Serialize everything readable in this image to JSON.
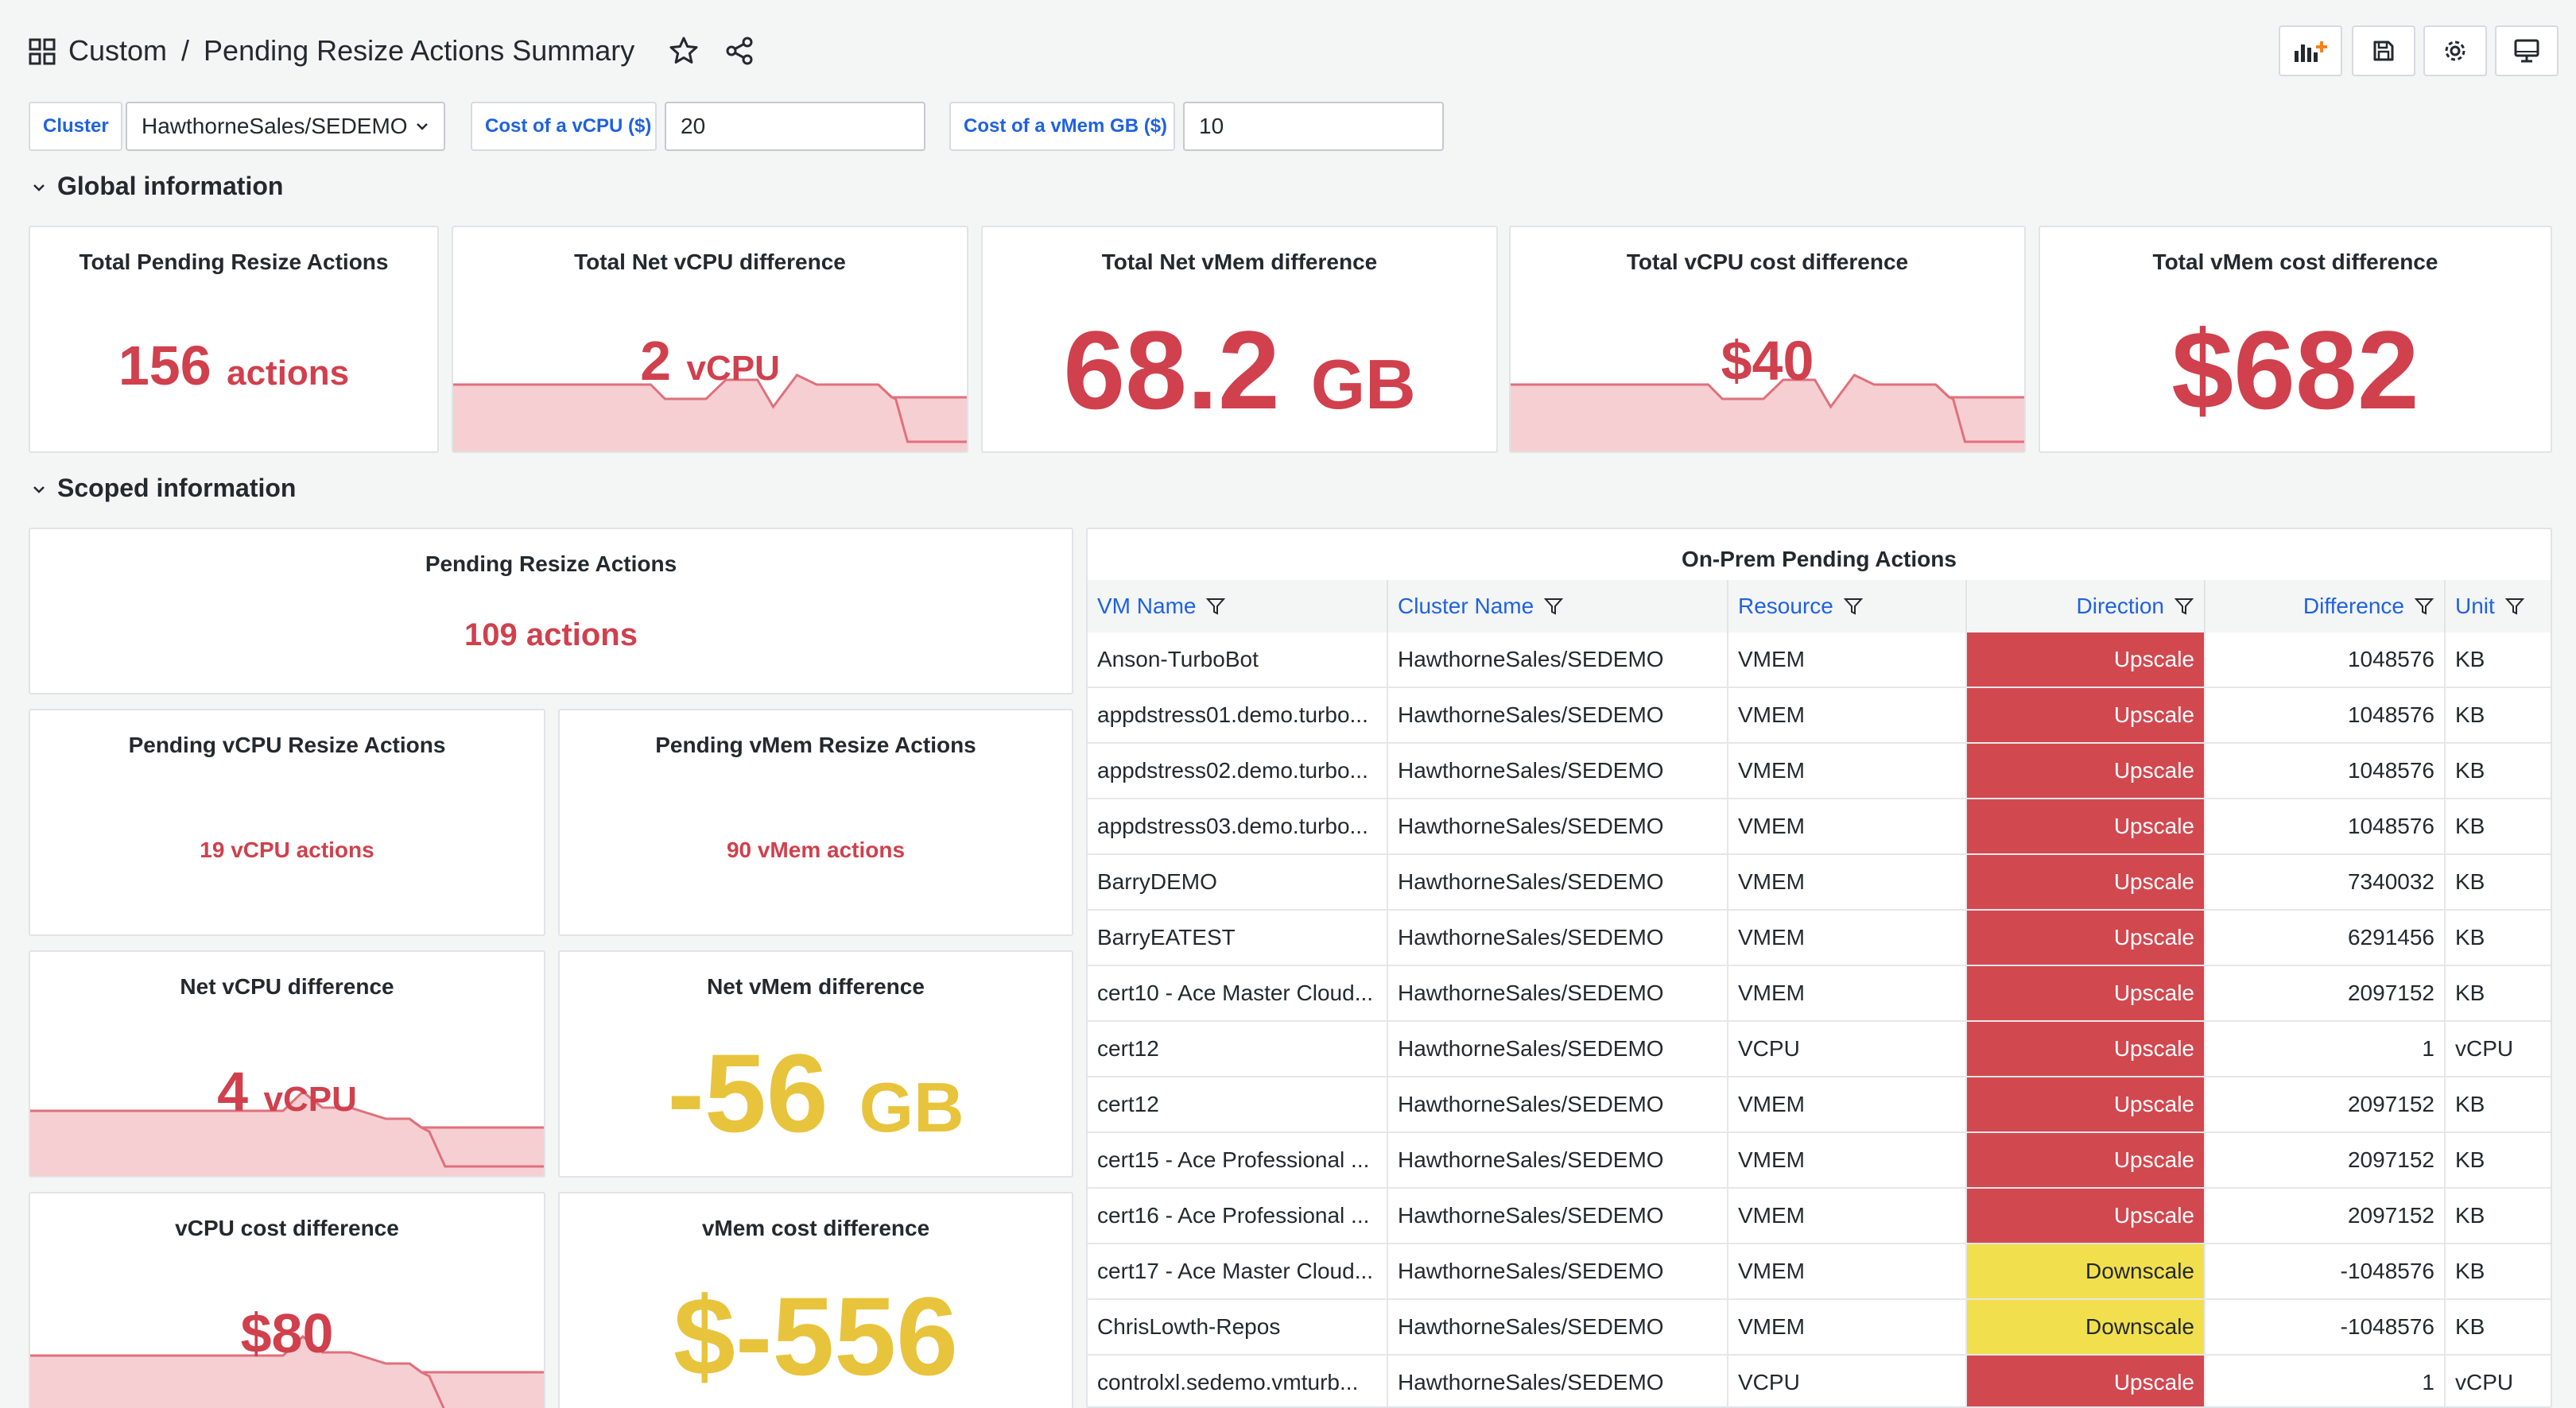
{
  "header": {
    "breadcrumb_parent": "Custom",
    "breadcrumb_sep": "/",
    "title": "Pending Resize Actions Summary",
    "toolbar_icons": [
      "add-panel-icon",
      "save-icon",
      "gear-icon",
      "monitor-icon"
    ]
  },
  "variables": {
    "cluster_label": "Cluster",
    "cluster_value": "HawthorneSales/SEDEMO",
    "vcpu_cost_label": "Cost of a vCPU ($)",
    "vcpu_cost_value": "20",
    "vmem_cost_label": "Cost of a vMem GB ($)",
    "vmem_cost_value": "10"
  },
  "global": {
    "row_title": "Global information",
    "panels": {
      "total_actions": {
        "title": "Total Pending Resize Actions",
        "value": "156",
        "unit": "actions"
      },
      "net_vcpu": {
        "title": "Total Net vCPU difference",
        "value": "2",
        "unit": "vCPU"
      },
      "net_vmem": {
        "title": "Total Net vMem difference",
        "value": "68.2",
        "unit": "GB"
      },
      "vcpu_cost": {
        "title": "Total vCPU cost difference",
        "value": "$40"
      },
      "vmem_cost": {
        "title": "Total vMem cost difference",
        "value": "$682"
      }
    }
  },
  "scoped": {
    "row_title": "Scoped information",
    "panels": {
      "pending_actions": {
        "title": "Pending Resize Actions",
        "value": "109 actions"
      },
      "vcpu_actions": {
        "title": "Pending vCPU Resize Actions",
        "value": "19 vCPU actions"
      },
      "vmem_actions": {
        "title": "Pending vMem Resize Actions",
        "value": "90 vMem actions"
      },
      "net_vcpu": {
        "title": "Net vCPU difference",
        "value": "4",
        "unit": "vCPU"
      },
      "net_vmem": {
        "title": "Net vMem difference",
        "value": "-56",
        "unit": "GB"
      },
      "vcpu_cost": {
        "title": "vCPU cost difference",
        "value": "$80"
      },
      "vmem_cost": {
        "title": "vMem cost difference",
        "value": "$-556"
      }
    }
  },
  "table": {
    "title": "On-Prem Pending Actions",
    "columns": [
      "VM Name",
      "Cluster Name",
      "Resource",
      "Direction",
      "Difference",
      "Unit"
    ],
    "rows": [
      {
        "vm": "Anson-TurboBot",
        "cluster": "HawthorneSales/SEDEMO",
        "resource": "VMEM",
        "direction": "Upscale",
        "difference": "1048576",
        "unit": "KB"
      },
      {
        "vm": "appdstress01.demo.turbo...",
        "cluster": "HawthorneSales/SEDEMO",
        "resource": "VMEM",
        "direction": "Upscale",
        "difference": "1048576",
        "unit": "KB"
      },
      {
        "vm": "appdstress02.demo.turbo...",
        "cluster": "HawthorneSales/SEDEMO",
        "resource": "VMEM",
        "direction": "Upscale",
        "difference": "1048576",
        "unit": "KB"
      },
      {
        "vm": "appdstress03.demo.turbo...",
        "cluster": "HawthorneSales/SEDEMO",
        "resource": "VMEM",
        "direction": "Upscale",
        "difference": "1048576",
        "unit": "KB"
      },
      {
        "vm": "BarryDEMO",
        "cluster": "HawthorneSales/SEDEMO",
        "resource": "VMEM",
        "direction": "Upscale",
        "difference": "7340032",
        "unit": "KB"
      },
      {
        "vm": "BarryEATEST",
        "cluster": "HawthorneSales/SEDEMO",
        "resource": "VMEM",
        "direction": "Upscale",
        "difference": "6291456",
        "unit": "KB"
      },
      {
        "vm": "cert10 - Ace Master Cloud...",
        "cluster": "HawthorneSales/SEDEMO",
        "resource": "VMEM",
        "direction": "Upscale",
        "difference": "2097152",
        "unit": "KB"
      },
      {
        "vm": "cert12",
        "cluster": "HawthorneSales/SEDEMO",
        "resource": "VCPU",
        "direction": "Upscale",
        "difference": "1",
        "unit": "vCPU"
      },
      {
        "vm": "cert12",
        "cluster": "HawthorneSales/SEDEMO",
        "resource": "VMEM",
        "direction": "Upscale",
        "difference": "2097152",
        "unit": "KB"
      },
      {
        "vm": "cert15 - Ace Professional ...",
        "cluster": "HawthorneSales/SEDEMO",
        "resource": "VMEM",
        "direction": "Upscale",
        "difference": "2097152",
        "unit": "KB"
      },
      {
        "vm": "cert16 - Ace Professional ...",
        "cluster": "HawthorneSales/SEDEMO",
        "resource": "VMEM",
        "direction": "Upscale",
        "difference": "2097152",
        "unit": "KB"
      },
      {
        "vm": "cert17 - Ace Master Cloud...",
        "cluster": "HawthorneSales/SEDEMO",
        "resource": "VMEM",
        "direction": "Downscale",
        "difference": "-1048576",
        "unit": "KB"
      },
      {
        "vm": "ChrisLowth-Repos",
        "cluster": "HawthorneSales/SEDEMO",
        "resource": "VMEM",
        "direction": "Downscale",
        "difference": "-1048576",
        "unit": "KB"
      },
      {
        "vm": "controlxl.sedemo.vmturb...",
        "cluster": "HawthorneSales/SEDEMO",
        "resource": "VCPU",
        "direction": "Upscale",
        "difference": "1",
        "unit": "vCPU"
      }
    ]
  },
  "colors": {
    "upscale": "#d2484f",
    "downscale": "#f2df4e",
    "stat_red": "#d0404d",
    "stat_yellow": "#e8c43d",
    "link_blue": "#1f62e0"
  }
}
